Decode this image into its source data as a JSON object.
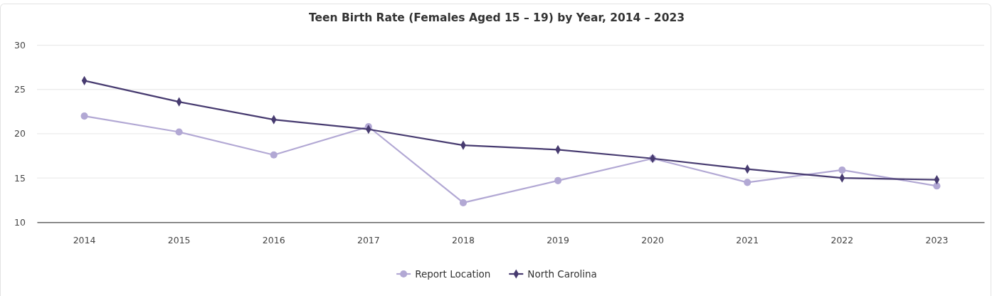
{
  "chart_data": {
    "type": "line",
    "title": "Teen Birth Rate (Females Aged 15 – 19) by Year, 2014 – 2023",
    "categories": [
      "2014",
      "2015",
      "2016",
      "2017",
      "2018",
      "2019",
      "2020",
      "2021",
      "2022",
      "2023"
    ],
    "series": [
      {
        "name": "Report Location",
        "color": "#b2a8d4",
        "marker": "circle",
        "values": [
          22.0,
          20.2,
          17.6,
          20.8,
          12.2,
          14.7,
          17.2,
          14.5,
          15.9,
          14.1
        ]
      },
      {
        "name": "North Carolina",
        "color": "#473b70",
        "marker": "diamond",
        "values": [
          26.0,
          23.6,
          21.6,
          20.5,
          18.7,
          18.2,
          17.2,
          16.0,
          15.0,
          14.8
        ]
      }
    ],
    "ylim": [
      10,
      30
    ],
    "yticks": [
      10,
      15,
      20,
      25,
      30
    ],
    "grid": "y",
    "legend": "bottom",
    "line_style": "solid"
  }
}
